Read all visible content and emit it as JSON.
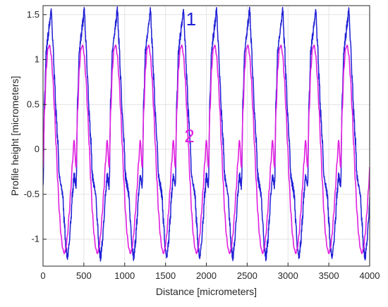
{
  "chart_data": {
    "type": "line",
    "title": "",
    "xlabel": "Distance [micrometers]",
    "ylabel": "Profile height [micrometers]",
    "xlim": [
      0,
      4000
    ],
    "ylim": [
      -1.3,
      1.6
    ],
    "x_ticks": [
      0,
      500,
      1000,
      1500,
      2000,
      2500,
      3000,
      3500,
      4000
    ],
    "x_tick_labels": [
      "0",
      "500",
      "1000",
      "1500",
      "2000",
      "2500",
      "3000",
      "3500",
      "4000"
    ],
    "y_ticks": [
      -1,
      -0.5,
      0,
      0.5,
      1,
      1.5
    ],
    "y_tick_labels": [
      "-1",
      "-0.5",
      "0",
      "0.5",
      "1",
      "1.5"
    ],
    "grid": true,
    "series": [
      {
        "color": "#1f1fd6",
        "period": 405,
        "x": [
          0,
          20,
          40,
          60,
          80,
          100,
          120,
          140,
          160,
          180,
          200,
          220,
          240,
          260,
          280,
          300,
          320,
          340,
          360,
          380,
          405
        ],
        "y": [
          -0.4,
          0.6,
          1.1,
          1.25,
          1.4,
          1.55,
          1.2,
          0.8,
          0.4,
          0.1,
          -0.3,
          -0.4,
          -0.5,
          -0.8,
          -1.1,
          -1.2,
          -1.05,
          -0.8,
          -0.5,
          -0.3,
          -0.4
        ]
      },
      {
        "color": "#e020e0",
        "period": 405,
        "x": [
          0,
          20,
          40,
          60,
          80,
          100,
          120,
          140,
          160,
          180,
          200,
          220,
          240,
          260,
          280,
          300,
          320,
          340,
          360,
          380,
          405
        ],
        "y": [
          -0.2,
          0.45,
          0.9,
          1.12,
          1.16,
          1.05,
          0.8,
          0.45,
          0.05,
          -0.35,
          -0.7,
          -0.95,
          -1.1,
          -1.16,
          -1.1,
          -0.95,
          -0.72,
          -0.45,
          -0.15,
          0.1,
          -0.2
        ]
      }
    ],
    "annotations": [
      {
        "text": "1",
        "x": 1750,
        "y": 1.38,
        "color": "#1f1fd6"
      },
      {
        "text": "2",
        "x": 1730,
        "y": 0.08,
        "color": "#e020e0"
      }
    ]
  }
}
